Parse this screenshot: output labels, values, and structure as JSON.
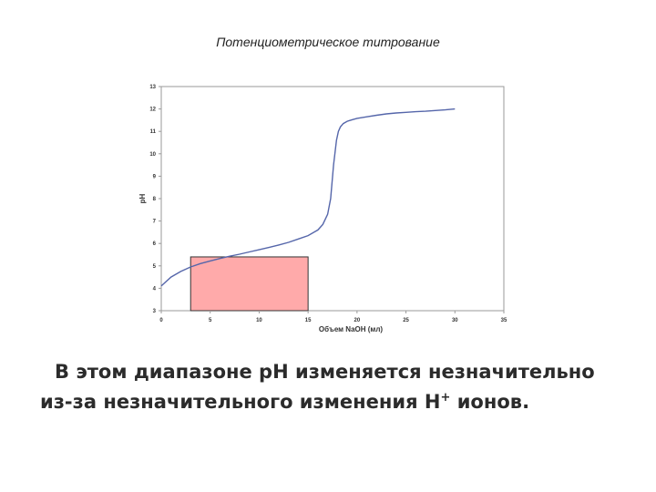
{
  "slide": {
    "title": "Потенциометрическое титрование"
  },
  "chart_data": {
    "type": "line",
    "xlabel": "Объем NaOH (мл)",
    "ylabel": "pH",
    "xlim": [
      0,
      35
    ],
    "ylim": [
      3,
      13
    ],
    "xticks": [
      0,
      5,
      10,
      15,
      20,
      25,
      30,
      35
    ],
    "yticks": [
      3,
      4,
      5,
      6,
      7,
      8,
      9,
      10,
      11,
      12,
      13
    ],
    "grid": false,
    "series": [
      {
        "color": "#5566aa",
        "x": [
          0,
          1,
          2,
          3,
          4,
          5,
          6,
          7,
          8,
          9,
          10,
          11,
          12,
          13,
          14,
          15,
          16,
          16.5,
          17,
          17.3,
          17.6,
          17.9,
          18.1,
          18.3,
          18.6,
          19,
          19.5,
          20,
          21,
          22,
          23,
          24,
          25,
          26,
          27,
          28,
          29,
          30
        ],
        "y": [
          4.1,
          4.5,
          4.75,
          4.95,
          5.1,
          5.22,
          5.33,
          5.43,
          5.52,
          5.62,
          5.72,
          5.82,
          5.93,
          6.05,
          6.2,
          6.35,
          6.6,
          6.85,
          7.3,
          8.0,
          9.5,
          10.6,
          11.0,
          11.2,
          11.35,
          11.45,
          11.52,
          11.58,
          11.65,
          11.72,
          11.78,
          11.82,
          11.85,
          11.88,
          11.9,
          11.93,
          11.96,
          12.0
        ]
      }
    ],
    "highlight_region": {
      "x_range": [
        3,
        15
      ],
      "y_range": [
        3,
        5.4
      ],
      "fill": "#ffaaaa",
      "stroke": "#333333"
    }
  },
  "caption": {
    "line1": "В этом диапазоне pH изменяется незначительно",
    "line2_text": "из-за незначительного изменения H",
    "line2_sup": "+",
    "line2_end": " ионов."
  }
}
